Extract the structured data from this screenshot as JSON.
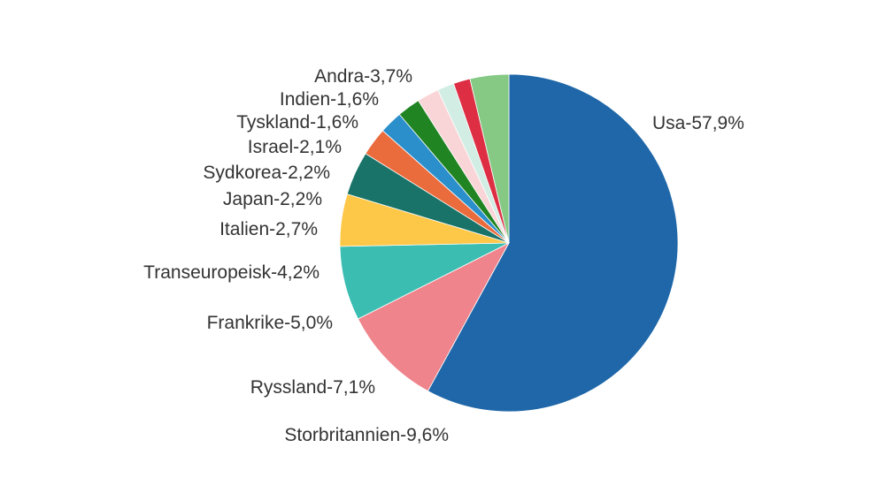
{
  "chart_data": {
    "type": "pie",
    "title": "",
    "start_angle_deg": 0,
    "direction": "clockwise",
    "slices": [
      {
        "label": "Usa-57,9%",
        "category": "Usa",
        "value": 57.9,
        "color": "#1f67a8"
      },
      {
        "label": "Storbritannien-9,6%",
        "category": "Storbritannien",
        "value": 9.6,
        "color": "#ef848c"
      },
      {
        "label": "Ryssland-7,1%",
        "category": "Ryssland",
        "value": 7.1,
        "color": "#3bbdb2"
      },
      {
        "label": "Frankrike-5,0%",
        "category": "Frankrike",
        "value": 5.0,
        "color": "#fdc748"
      },
      {
        "label": "Transeuropeisk-4,2%",
        "category": "Transeuropeisk",
        "value": 4.2,
        "color": "#197369"
      },
      {
        "label": "Italien-2,7%",
        "category": "Italien",
        "value": 2.7,
        "color": "#ea6b3c"
      },
      {
        "label": "Japan-2,2%",
        "category": "Japan",
        "value": 2.2,
        "color": "#2a8fcb"
      },
      {
        "label": "Sydkorea-2,2%",
        "category": "Sydkorea",
        "value": 2.2,
        "color": "#218423"
      },
      {
        "label": "Israel-2,1%",
        "category": "Israel",
        "value": 2.1,
        "color": "#fad5d8"
      },
      {
        "label": "Tyskland-1,6%",
        "category": "Tyskland",
        "value": 1.6,
        "color": "#d1ede4"
      },
      {
        "label": "Indien-1,6%",
        "category": "Indien",
        "value": 1.6,
        "color": "#dd2e44"
      },
      {
        "label": "Andra-3,7%",
        "category": "Andra",
        "value": 3.7,
        "color": "#85c984"
      }
    ]
  }
}
